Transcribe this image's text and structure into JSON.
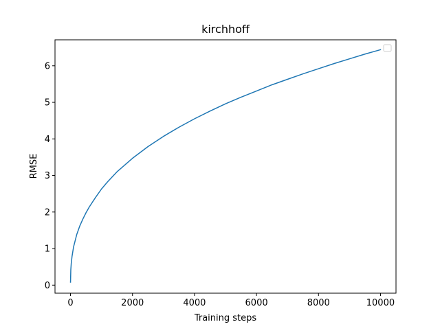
{
  "chart_data": {
    "type": "line",
    "title": "kirchhoff",
    "xlabel": "Training steps",
    "ylabel": "RMSE",
    "xlim": [
      -500,
      10500
    ],
    "ylim": [
      -0.22,
      6.71
    ],
    "xticks": [
      0,
      2000,
      4000,
      6000,
      8000,
      10000
    ],
    "yticks": [
      0,
      1,
      2,
      3,
      4,
      5,
      6
    ],
    "grid": false,
    "legend": {
      "position": "upper right",
      "entries": []
    },
    "series": [
      {
        "color": "#1f77b4",
        "x": [
          0,
          10,
          25,
          50,
          100,
          200,
          300,
          400,
          500,
          600,
          800,
          1000,
          1200,
          1500,
          2000,
          2500,
          3000,
          3500,
          4000,
          4500,
          5000,
          5500,
          6000,
          6500,
          7000,
          7500,
          8000,
          8500,
          9000,
          9500,
          10000
        ],
        "y": [
          0.08,
          0.42,
          0.6,
          0.79,
          1.05,
          1.38,
          1.62,
          1.81,
          1.98,
          2.13,
          2.39,
          2.63,
          2.83,
          3.1,
          3.47,
          3.79,
          4.07,
          4.32,
          4.55,
          4.76,
          4.96,
          5.14,
          5.31,
          5.48,
          5.63,
          5.78,
          5.92,
          6.06,
          6.19,
          6.32,
          6.44
        ]
      }
    ]
  }
}
